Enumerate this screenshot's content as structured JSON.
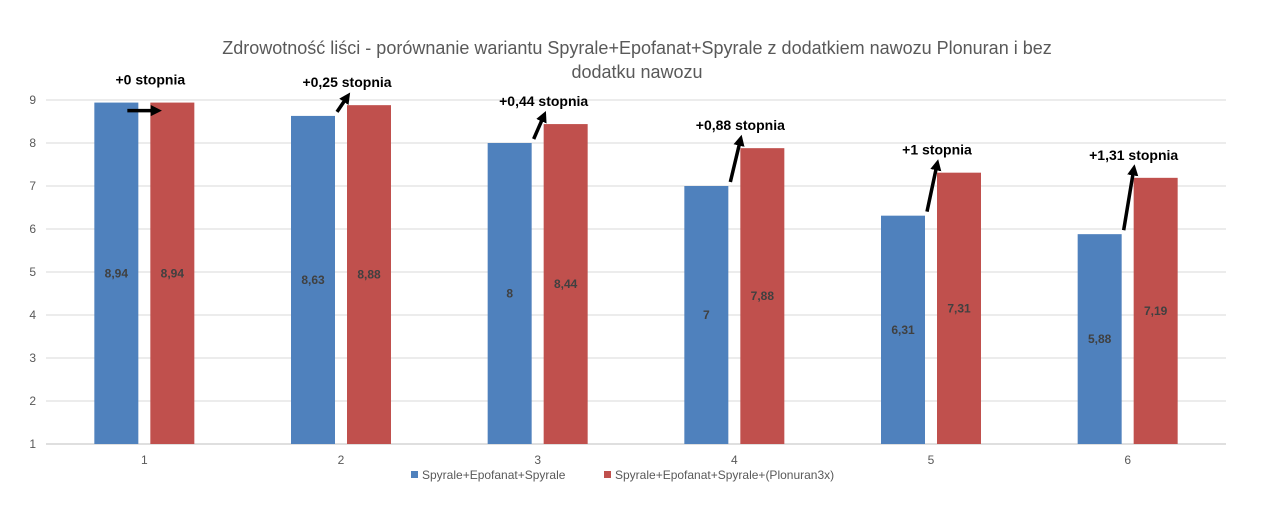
{
  "chart_data": {
    "type": "bar",
    "title": "Zdrowotność liści - porównanie wariantu Spyrale+Epofanat+Spyrale z dodatkiem nawozu Plonuran i bez",
    "title_line2": "dodatku nawozu",
    "categories": [
      "1",
      "2",
      "3",
      "4",
      "5",
      "6"
    ],
    "series": [
      {
        "name": "Spyrale+Epofanat+Spyrale",
        "color": "#4f81bd",
        "values": [
          8.94,
          8.63,
          8,
          7,
          6.31,
          5.88
        ],
        "labels": [
          "8,94",
          "8,63",
          "8",
          "7",
          "6,31",
          "5,88"
        ]
      },
      {
        "name": "Spyrale+Epofanat+Spyrale+(Plonuran3x)",
        "color": "#c0504d",
        "values": [
          8.94,
          8.88,
          8.44,
          7.88,
          7.31,
          7.19
        ],
        "labels": [
          "8,94",
          "8,88",
          "8,44",
          "7,88",
          "7,31",
          "7,19"
        ]
      }
    ],
    "annotations": [
      "+0 stopnia",
      "+0,25 stopnia",
      "+0,44 stopnia",
      "+0,88 stopnia",
      "+1 stopnia",
      "+1,31 stopnia"
    ],
    "y_ticks": [
      "1",
      "2",
      "3",
      "4",
      "5",
      "6",
      "7",
      "8",
      "9"
    ],
    "ylim": [
      1,
      9
    ],
    "grid": true,
    "legend": "bottom"
  }
}
